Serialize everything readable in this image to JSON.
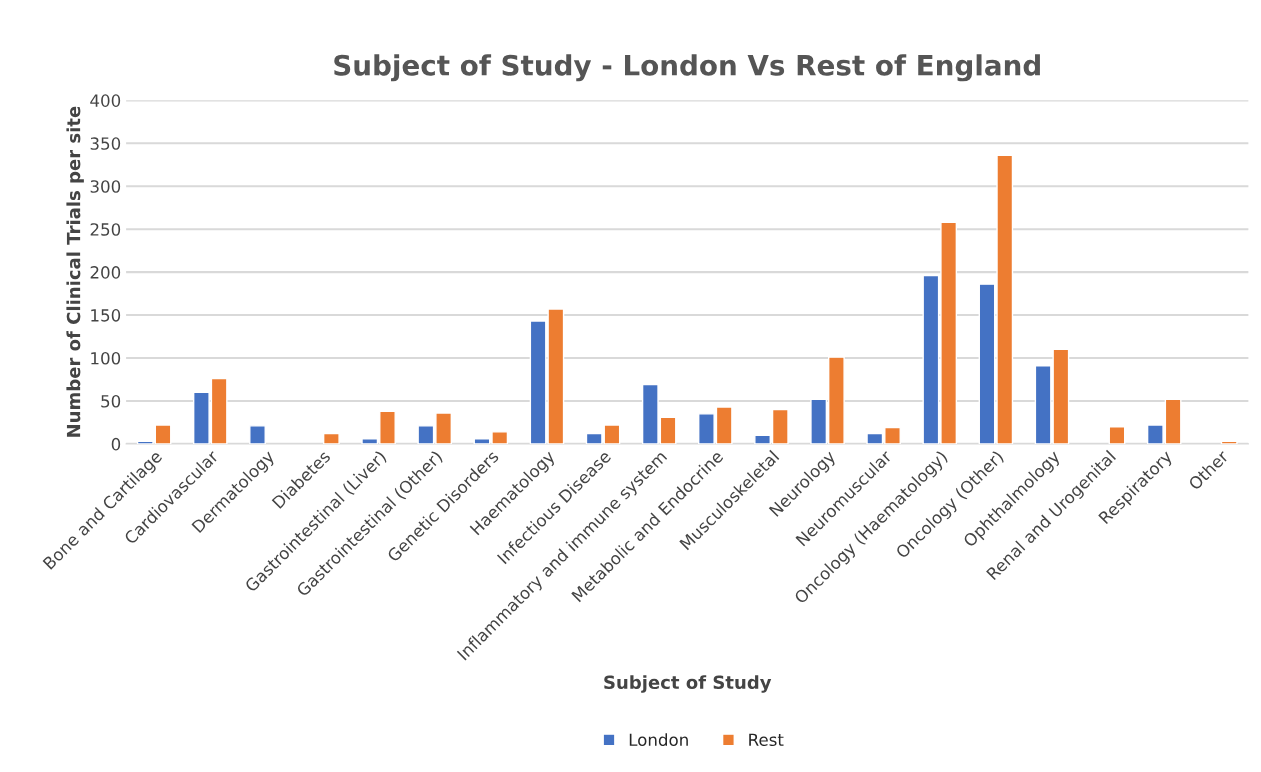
{
  "chart_data": {
    "type": "bar",
    "title": "Subject of Study - London Vs Rest of England",
    "xlabel": "Subject of Study",
    "ylabel": "Number of Clinical Trials per site",
    "categories": [
      "Bone and Cartilage",
      "Cardiovascular",
      "Dermatology",
      "Diabetes",
      "Gastrointestinal (Liver)",
      "Gastrointestinal (Other)",
      "Genetic Disorders",
      "Haematology",
      "Infectious Disease",
      "Inflammatory and immune system",
      "Metabolic and Endocrine",
      "Musculoskeletal",
      "Neurology",
      "Neuromuscular",
      "Oncology (Haematology)",
      "Oncology (Other)",
      "Ophthalmology",
      "Renal and Urogenital",
      "Respiratory",
      "Other"
    ],
    "series": [
      {
        "name": "London",
        "color": "#4472c4",
        "values": [
          3,
          60,
          21,
          null,
          6,
          21,
          6,
          143,
          12,
          69,
          35,
          10,
          52,
          12,
          196,
          186,
          91,
          null,
          22,
          null
        ]
      },
      {
        "name": "Rest",
        "color": "#ed7d31",
        "values": [
          22,
          76,
          null,
          12,
          38,
          36,
          14,
          157,
          22,
          31,
          43,
          40,
          101,
          19,
          258,
          336,
          110,
          20,
          52,
          3
        ]
      }
    ],
    "ylim": [
      0,
      400
    ],
    "yticks": [
      0,
      50,
      100,
      150,
      200,
      250,
      300,
      350,
      400
    ],
    "grid": "y",
    "legend": "bottom"
  }
}
